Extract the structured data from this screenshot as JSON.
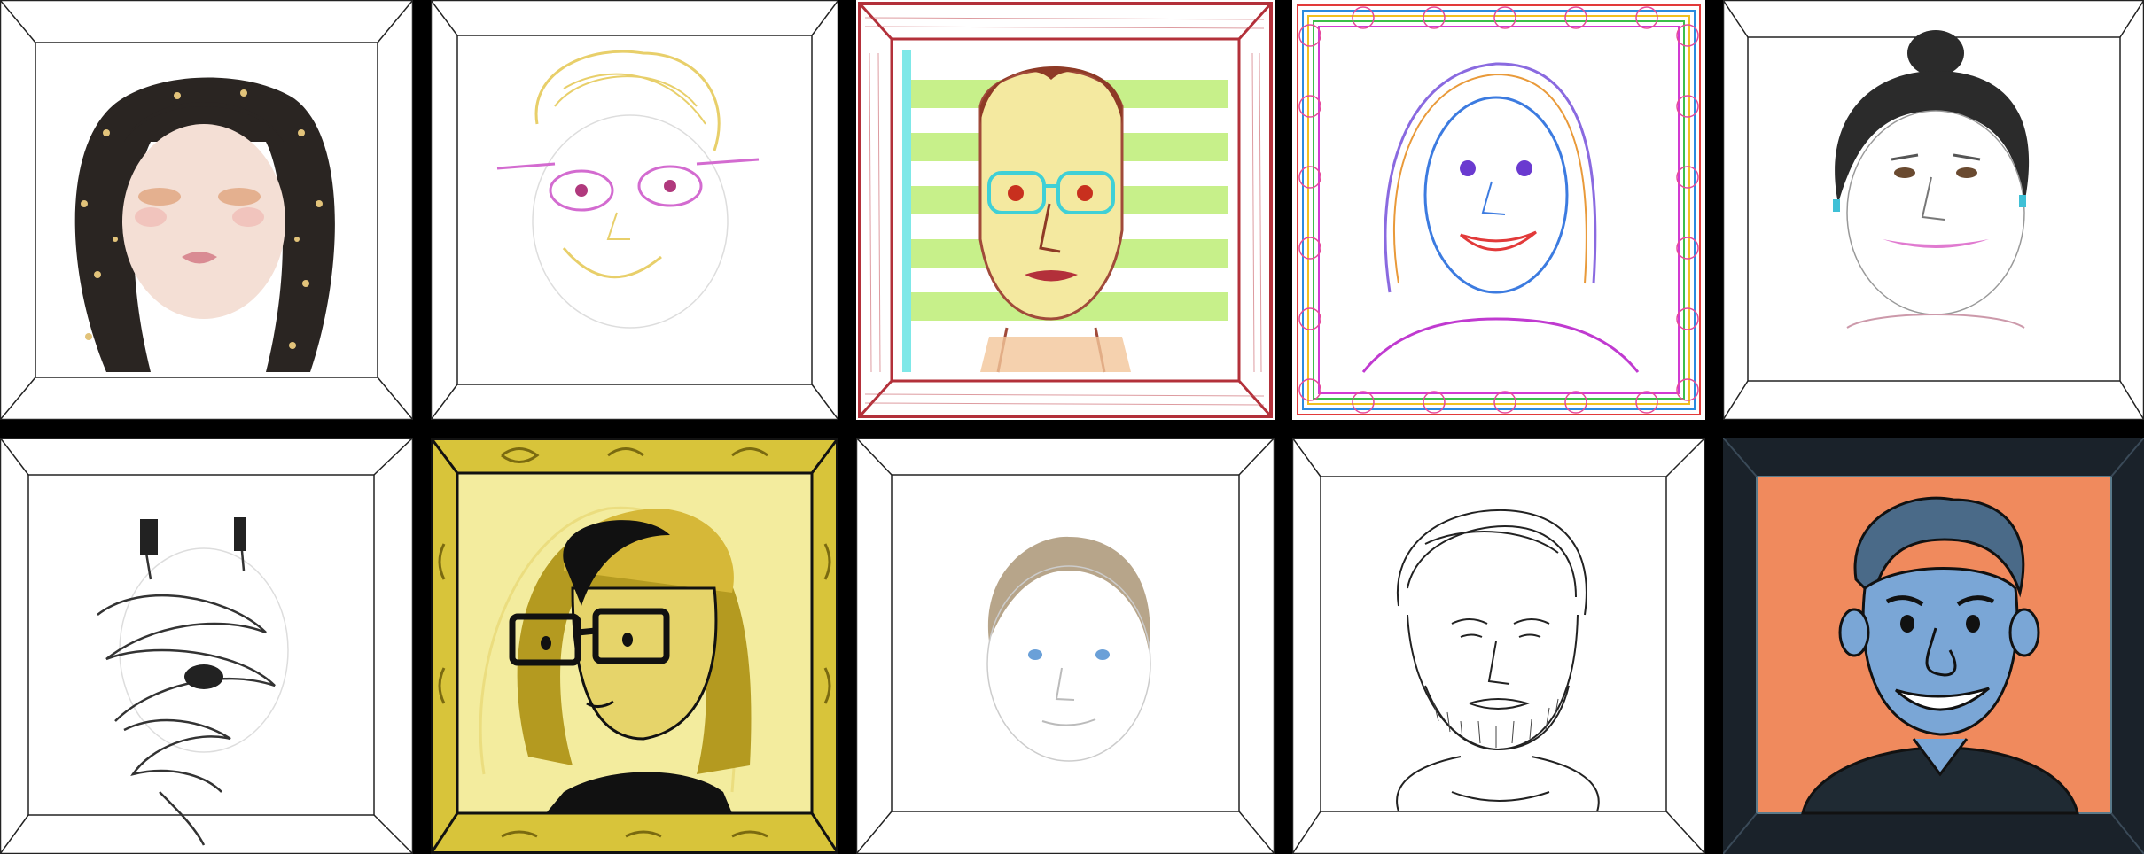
{
  "gallery": {
    "background": "#000000",
    "portraits": [
      {
        "name": "portrait-galaxy-hair",
        "frame": "plain",
        "frame_color": "#ffffff",
        "inner_color": "#ffffff"
      },
      {
        "name": "portrait-crayon-glasses",
        "frame": "plain",
        "frame_color": "#ffffff",
        "inner_color": "#ffffff"
      },
      {
        "name": "portrait-striped-red-frame",
        "frame": "red-sketch",
        "frame_color": "#b3303a",
        "inner_color": "#c7f08a"
      },
      {
        "name": "portrait-rainbow-loops",
        "frame": "rainbow-loops",
        "frame_color": "#ffffff",
        "inner_color": "#ffffff"
      },
      {
        "name": "portrait-pencil-bun",
        "frame": "plain",
        "frame_color": "#ffffff",
        "inner_color": "#ffffff"
      },
      {
        "name": "portrait-scribble",
        "frame": "plain",
        "frame_color": "#ffffff",
        "inner_color": "#ffffff"
      },
      {
        "name": "portrait-yellow-cartoon",
        "frame": "gold-ornate",
        "frame_color": "#d8c43a",
        "inner_color": "#f3ec9e"
      },
      {
        "name": "portrait-child-sketch",
        "frame": "plain",
        "frame_color": "#ffffff",
        "inner_color": "#ffffff"
      },
      {
        "name": "portrait-bearded-lineart",
        "frame": "plain",
        "frame_color": "#ffffff",
        "inner_color": "#ffffff"
      },
      {
        "name": "portrait-blue-smile",
        "frame": "dark",
        "frame_color": "#1a222a",
        "inner_color": "#f08a5d"
      }
    ]
  }
}
